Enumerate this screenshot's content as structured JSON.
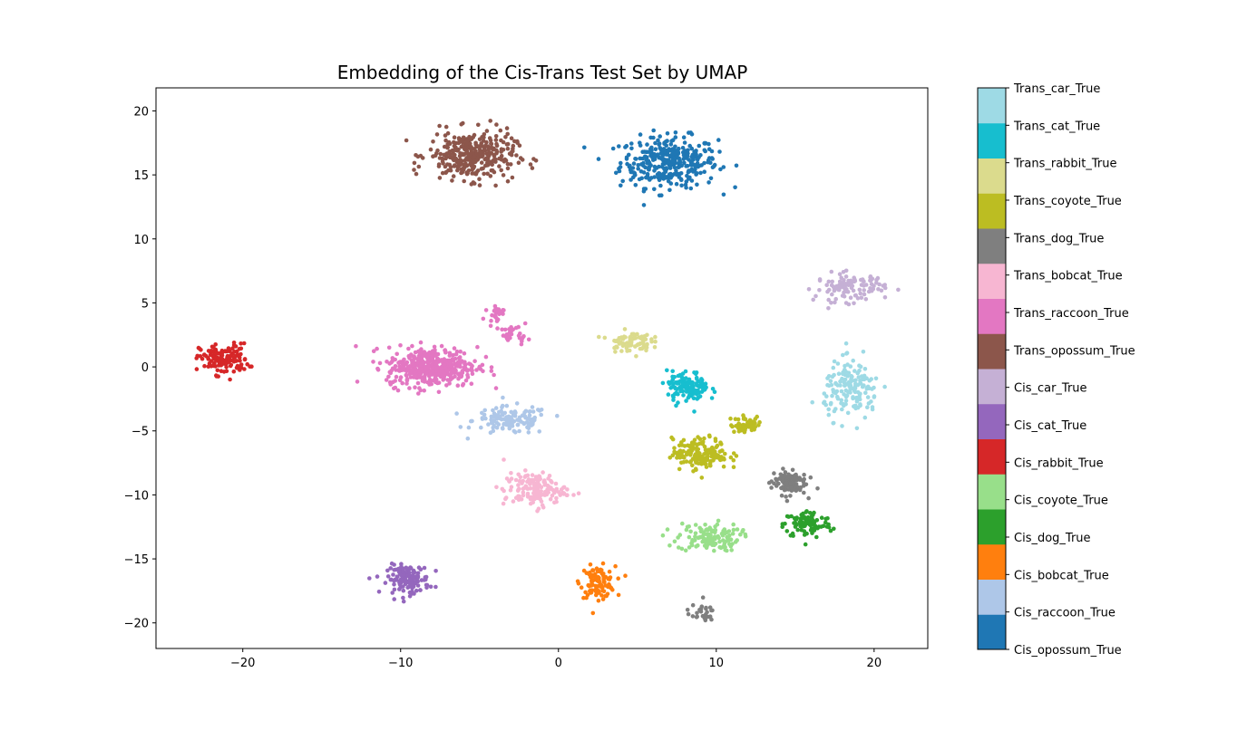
{
  "chart_data": {
    "type": "scatter",
    "title": "Embedding of the Cis-Trans Test Set by UMAP",
    "xlabel": "",
    "ylabel": "",
    "xlim": [
      -25.5,
      23.4
    ],
    "ylim": [
      -22,
      21.8
    ],
    "xticks": [
      -20,
      -10,
      0,
      10,
      20
    ],
    "yticks": [
      -20,
      -15,
      -10,
      -5,
      0,
      5,
      10,
      15,
      20
    ],
    "xtick_labels": [
      "−20",
      "−10",
      "0",
      "10",
      "20"
    ],
    "ytick_labels": [
      "−20",
      "−15",
      "−10",
      "−5",
      "0",
      "5",
      "10",
      "15",
      "20"
    ],
    "grid": false,
    "colorbar": {
      "labels": [
        "Cis_opossum_True",
        "Cis_raccoon_True",
        "Cis_bobcat_True",
        "Cis_dog_True",
        "Cis_coyote_True",
        "Cis_rabbit_True",
        "Cis_cat_True",
        "Cis_car_True",
        "Trans_opossum_True",
        "Trans_raccoon_True",
        "Trans_bobcat_True",
        "Trans_dog_True",
        "Trans_coyote_True",
        "Trans_rabbit_True",
        "Trans_cat_True",
        "Trans_car_True"
      ],
      "colors": [
        "#1f77b4",
        "#aec7e8",
        "#ff7f0e",
        "#2ca02c",
        "#98df8a",
        "#d62728",
        "#9467bd",
        "#c5b0d5",
        "#8c564b",
        "#e377c2",
        "#f7b6d2",
        "#7f7f7f",
        "#bcbd22",
        "#dbdb8d",
        "#17becf",
        "#9edae5"
      ]
    },
    "series": [
      {
        "name": "Cis_opossum_True",
        "clusters": [
          {
            "center": [
              7.0,
              16.0
            ],
            "spread": [
              2.8,
              1.8
            ],
            "n": 340
          }
        ]
      },
      {
        "name": "Cis_raccoon_True",
        "clusters": [
          {
            "center": [
              -3.0,
              -4.2
            ],
            "spread": [
              2.2,
              1.0
            ],
            "n": 130
          }
        ]
      },
      {
        "name": "Cis_bobcat_True",
        "clusters": [
          {
            "center": [
              2.5,
              -16.8
            ],
            "spread": [
              1.0,
              1.1
            ],
            "n": 110
          }
        ]
      },
      {
        "name": "Cis_dog_True",
        "clusters": [
          {
            "center": [
              15.8,
              -12.3
            ],
            "spread": [
              1.4,
              1.0
            ],
            "n": 100
          }
        ]
      },
      {
        "name": "Cis_coyote_True",
        "clusters": [
          {
            "center": [
              9.5,
              -13.3
            ],
            "spread": [
              1.8,
              1.0
            ],
            "n": 130
          }
        ]
      },
      {
        "name": "Cis_rabbit_True",
        "clusters": [
          {
            "center": [
              -21.2,
              0.6
            ],
            "spread": [
              1.4,
              1.1
            ],
            "n": 140
          }
        ]
      },
      {
        "name": "Cis_cat_True",
        "clusters": [
          {
            "center": [
              -9.5,
              -16.6
            ],
            "spread": [
              1.2,
              1.0
            ],
            "n": 140
          }
        ]
      },
      {
        "name": "Cis_car_True",
        "clusters": [
          {
            "center": [
              18.5,
              6.2
            ],
            "spread": [
              2.0,
              1.0
            ],
            "n": 110
          }
        ]
      },
      {
        "name": "Trans_opossum_True",
        "clusters": [
          {
            "center": [
              -5.5,
              16.5
            ],
            "spread": [
              2.5,
              1.7
            ],
            "n": 340
          }
        ]
      },
      {
        "name": "Trans_raccoon_True",
        "clusters": [
          {
            "center": [
              -8.0,
              0.0
            ],
            "spread": [
              2.6,
              1.4
            ],
            "n": 420
          },
          {
            "center": [
              -4.0,
              4.2
            ],
            "spread": [
              0.5,
              0.6
            ],
            "n": 25
          },
          {
            "center": [
              -2.8,
              2.5
            ],
            "spread": [
              0.8,
              0.6
            ],
            "n": 30
          }
        ]
      },
      {
        "name": "Trans_bobcat_True",
        "clusters": [
          {
            "center": [
              -1.5,
              -9.6
            ],
            "spread": [
              1.8,
              1.2
            ],
            "n": 150
          }
        ]
      },
      {
        "name": "Trans_dog_True",
        "clusters": [
          {
            "center": [
              14.6,
              -9.0
            ],
            "spread": [
              1.0,
              0.9
            ],
            "n": 110
          },
          {
            "center": [
              9.0,
              -19.2
            ],
            "spread": [
              0.8,
              0.6
            ],
            "n": 30
          }
        ]
      },
      {
        "name": "Trans_coyote_True",
        "clusters": [
          {
            "center": [
              9.0,
              -6.8
            ],
            "spread": [
              1.6,
              1.1
            ],
            "n": 170
          },
          {
            "center": [
              12.0,
              -4.5
            ],
            "spread": [
              1.0,
              0.6
            ],
            "n": 50
          }
        ]
      },
      {
        "name": "Trans_rabbit_True",
        "clusters": [
          {
            "center": [
              4.5,
              2.0
            ],
            "spread": [
              1.2,
              0.7
            ],
            "n": 80
          }
        ]
      },
      {
        "name": "Trans_cat_True",
        "clusters": [
          {
            "center": [
              8.2,
              -1.6
            ],
            "spread": [
              1.2,
              1.1
            ],
            "n": 130
          }
        ]
      },
      {
        "name": "Trans_car_True",
        "clusters": [
          {
            "center": [
              18.6,
              -1.8
            ],
            "spread": [
              1.6,
              2.0
            ],
            "n": 160
          }
        ]
      }
    ]
  }
}
